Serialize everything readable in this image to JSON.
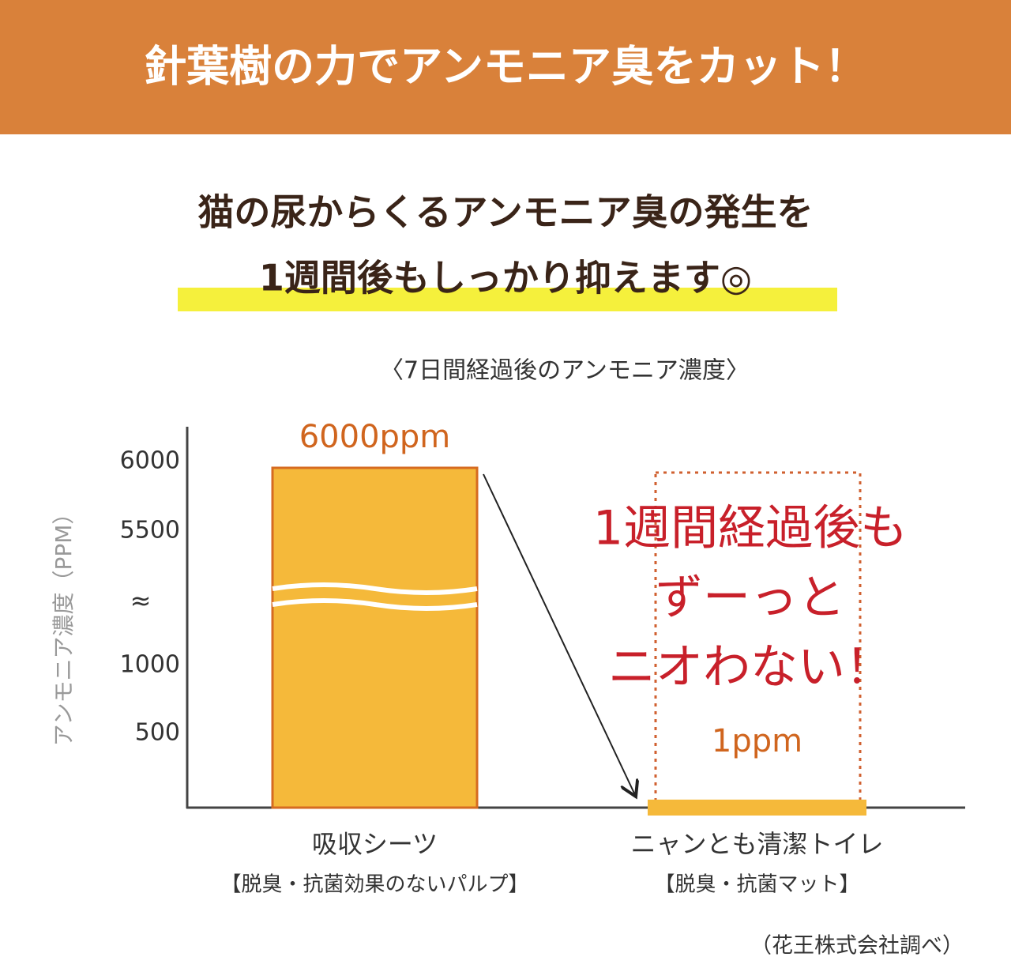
{
  "header": {
    "title": "針葉樹の力でアンモニア臭をカット！"
  },
  "subtitle": [
    "猫の尿からくるアンモニア臭の発生を",
    "1週間後もしっかり抑えます◎"
  ],
  "chart_data": {
    "type": "bar",
    "title": "〈7日間経過後のアンモニア濃度〉",
    "y_label": "アンモニア濃度（PPM）",
    "categories": [
      "吸収シーツ",
      "ニャンとも清潔トイレ"
    ],
    "category_notes": [
      "【脱臭・抗菌効果のないパルプ】",
      "【脱臭・抗菌マット】"
    ],
    "values": [
      6000,
      1
    ],
    "value_labels": [
      "6000ppm",
      "1ppm"
    ],
    "color": "#f5b93a",
    "edge_color": "#d66b20",
    "ylim": [
      0,
      6000
    ],
    "yticks": [
      6000,
      5500,
      1000,
      500
    ],
    "break_label": "≈",
    "annotation": [
      "1週間経過後も",
      "ずーっと",
      "ニオわない！"
    ]
  },
  "source": "（花王株式会社調べ）"
}
